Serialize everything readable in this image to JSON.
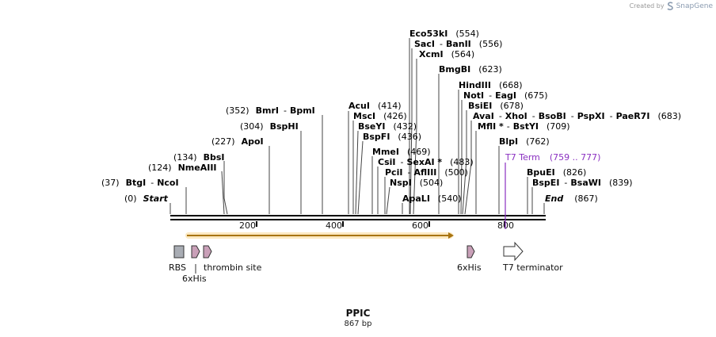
{
  "credit": {
    "prefix": "Created by",
    "brand": "SnapGene"
  },
  "plasmid": {
    "name": "PPIC",
    "length_label": "867 bp"
  },
  "ruler_ticks": [
    "200",
    "400",
    "600",
    "800"
  ],
  "sites": [
    {
      "name": "Eco53kI",
      "pos": "(554)"
    },
    {
      "name": "SacI",
      "sep": "-",
      "name2": "BanII",
      "pos": "(556)"
    },
    {
      "name": "XcmI",
      "pos": "(564)"
    },
    {
      "name": "BmgBI",
      "pos": "(623)"
    },
    {
      "name": "HindIII",
      "pos": "(668)"
    },
    {
      "name": "NotI",
      "sep": "-",
      "name2": "EagI",
      "pos": "(675)"
    },
    {
      "name": "BsiEI",
      "pos": "(678)"
    },
    {
      "name": "AvaI",
      "sep": "-",
      "name2": "XhoI",
      "name3": "BsoBI",
      "name4": "PspXI",
      "name5": "PaeR7I",
      "pos": "(683)"
    },
    {
      "name": "MflI *",
      "sep": "-",
      "name2": "BstYI",
      "pos": "(709)"
    },
    {
      "name": "BlpI",
      "pos": "(762)"
    },
    {
      "name": "AcuI",
      "pos": "(414)"
    },
    {
      "name": "MscI",
      "pos": "(426)"
    },
    {
      "name": "BseYI",
      "pos": "(432)"
    },
    {
      "name": "BspFI",
      "pos": "(436)"
    },
    {
      "name": "MmeI",
      "pos": "(469)"
    },
    {
      "name": "CsiI",
      "sep": "-",
      "name2": "SexAI *",
      "pos": "(483)"
    },
    {
      "name": "PciI",
      "sep": "-",
      "name2": "AflIII",
      "pos": "(500)"
    },
    {
      "name": "NspI",
      "pos": "(504)"
    },
    {
      "name": "ApaLI",
      "pos": "(540)"
    },
    {
      "name": "BmrI",
      "sep": "-",
      "name2": "BpmI",
      "pos": "(352)"
    },
    {
      "name": "BspHI",
      "pos": "(304)"
    },
    {
      "name": "ApoI",
      "pos": "(227)"
    },
    {
      "name": "BbsI",
      "pos": "(134)"
    },
    {
      "name": "NmeAIII",
      "pos": "(124)"
    },
    {
      "name": "BtgI",
      "sep": "-",
      "name2": "NcoI",
      "pos": "(37)"
    },
    {
      "name": "Start",
      "pos": "(0)"
    },
    {
      "name": "BpuEI",
      "pos": "(826)"
    },
    {
      "name": "BspEI",
      "sep": "-",
      "name2": "BsaWI",
      "pos": "(839)"
    },
    {
      "name": "End",
      "pos": "(867)"
    }
  ],
  "t7term": {
    "name": "T7 Term",
    "range": "(759 .. 777)",
    "color": "#8a2fc1"
  },
  "features": {
    "rbs": "RBS",
    "his1": "6xHis",
    "thrombin": "thrombin site",
    "his2": "6xHis",
    "t7": "T7 terminator"
  },
  "colors": {
    "orf": "#f0a830",
    "his": "#c9a0b8",
    "rbs": "#a9adb4",
    "backbone": "#000000"
  }
}
